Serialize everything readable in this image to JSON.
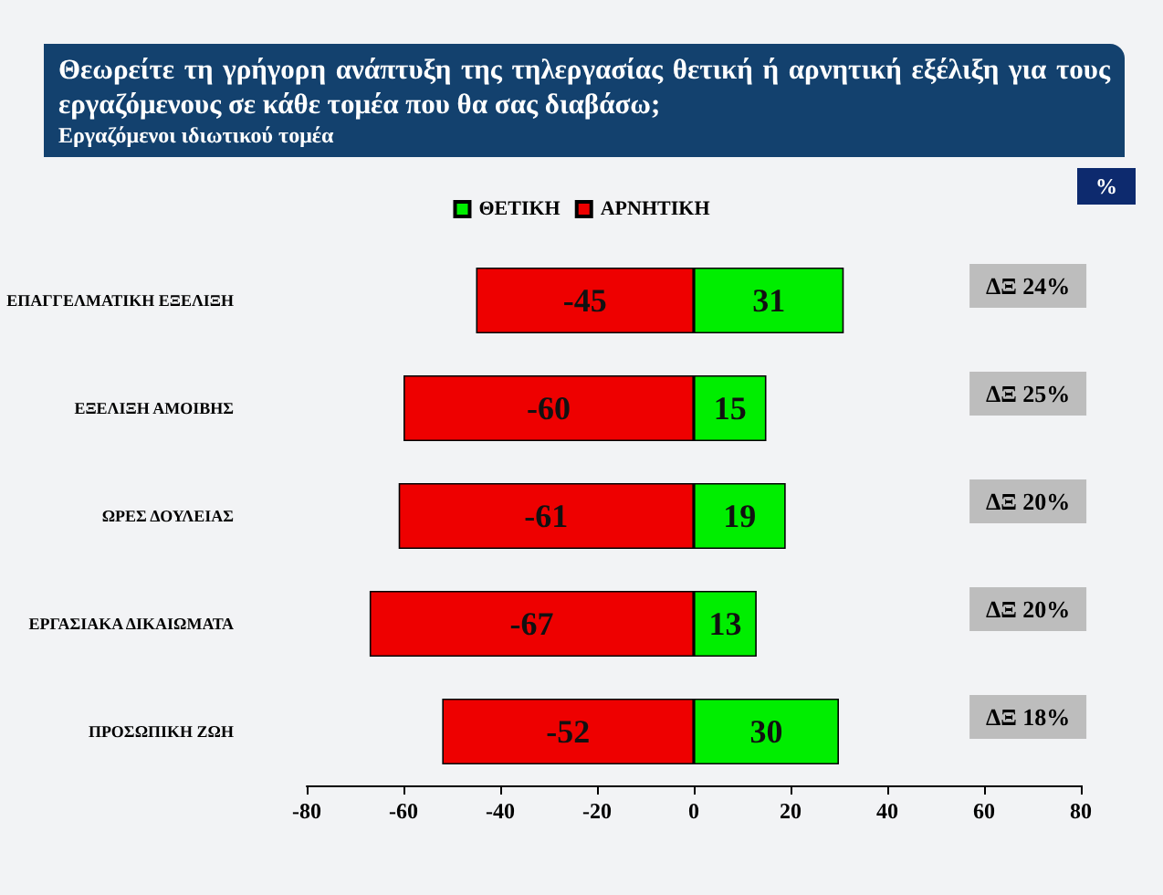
{
  "chart_data": {
    "type": "bar",
    "orientation": "horizontal",
    "stacked": true,
    "title": "Θεωρείτε τη γρήγορη ανάπτυξη της τηλεργασίας θετική ή αρνητική εξέλιξη για τους εργαζόμενους σε κάθε τομέα που θα σας διαβάσω;",
    "subtitle": "Εργαζόμενοι ιδιωτικού  τομέα",
    "categories": [
      "ΕΠΑΓΓΕΛΜΑΤΙΚΗ ΕΞΕΛΙΞΗ",
      "ΕΞΕΛΙΞΗ ΑΜΟΙΒΗΣ",
      "ΩΡΕΣ ΔΟΥΛΕΙΑΣ",
      "ΕΡΓΑΣΙΑΚΑ ΔΙΚΑΙΩΜΑΤΑ",
      "ΠΡΟΣΩΠΙΚΗ ΖΩΗ"
    ],
    "series": [
      {
        "name": "ΘΕΤΙΚΗ",
        "color": "#00ee00",
        "values": [
          31,
          15,
          19,
          13,
          30
        ]
      },
      {
        "name": "ΑΡΝΗΤΙΚΗ",
        "color": "#ee0000",
        "values": [
          -45,
          -60,
          -61,
          -67,
          -52
        ]
      }
    ],
    "xlim": [
      -80,
      80
    ],
    "xticks": [
      -80,
      -60,
      -40,
      -20,
      0,
      20,
      40,
      60,
      80
    ],
    "data_labels": true,
    "legend": "top",
    "grid": false,
    "annotations": [
      "%",
      "ΔΞ 24%",
      "ΔΞ 25%",
      "ΔΞ 20%",
      "ΔΞ 20%",
      "ΔΞ 18%"
    ]
  }
}
